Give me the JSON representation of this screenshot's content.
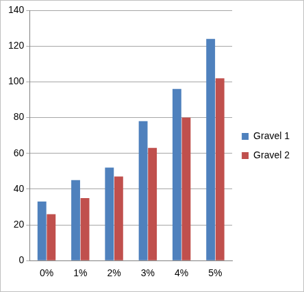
{
  "chart_data": {
    "type": "bar",
    "categories": [
      "0%",
      "1%",
      "2%",
      "3%",
      "4%",
      "5%"
    ],
    "series": [
      {
        "name": "Gravel 1",
        "color": "#4f81bd",
        "values": [
          33,
          45,
          52,
          78,
          96,
          124
        ]
      },
      {
        "name": "Gravel 2",
        "color": "#c0504d",
        "values": [
          26,
          35,
          47,
          63,
          80,
          102
        ]
      }
    ],
    "ylim": [
      0,
      140
    ],
    "yticks": [
      0,
      20,
      40,
      60,
      80,
      100,
      120,
      140
    ],
    "grid": true,
    "legend": "right"
  }
}
